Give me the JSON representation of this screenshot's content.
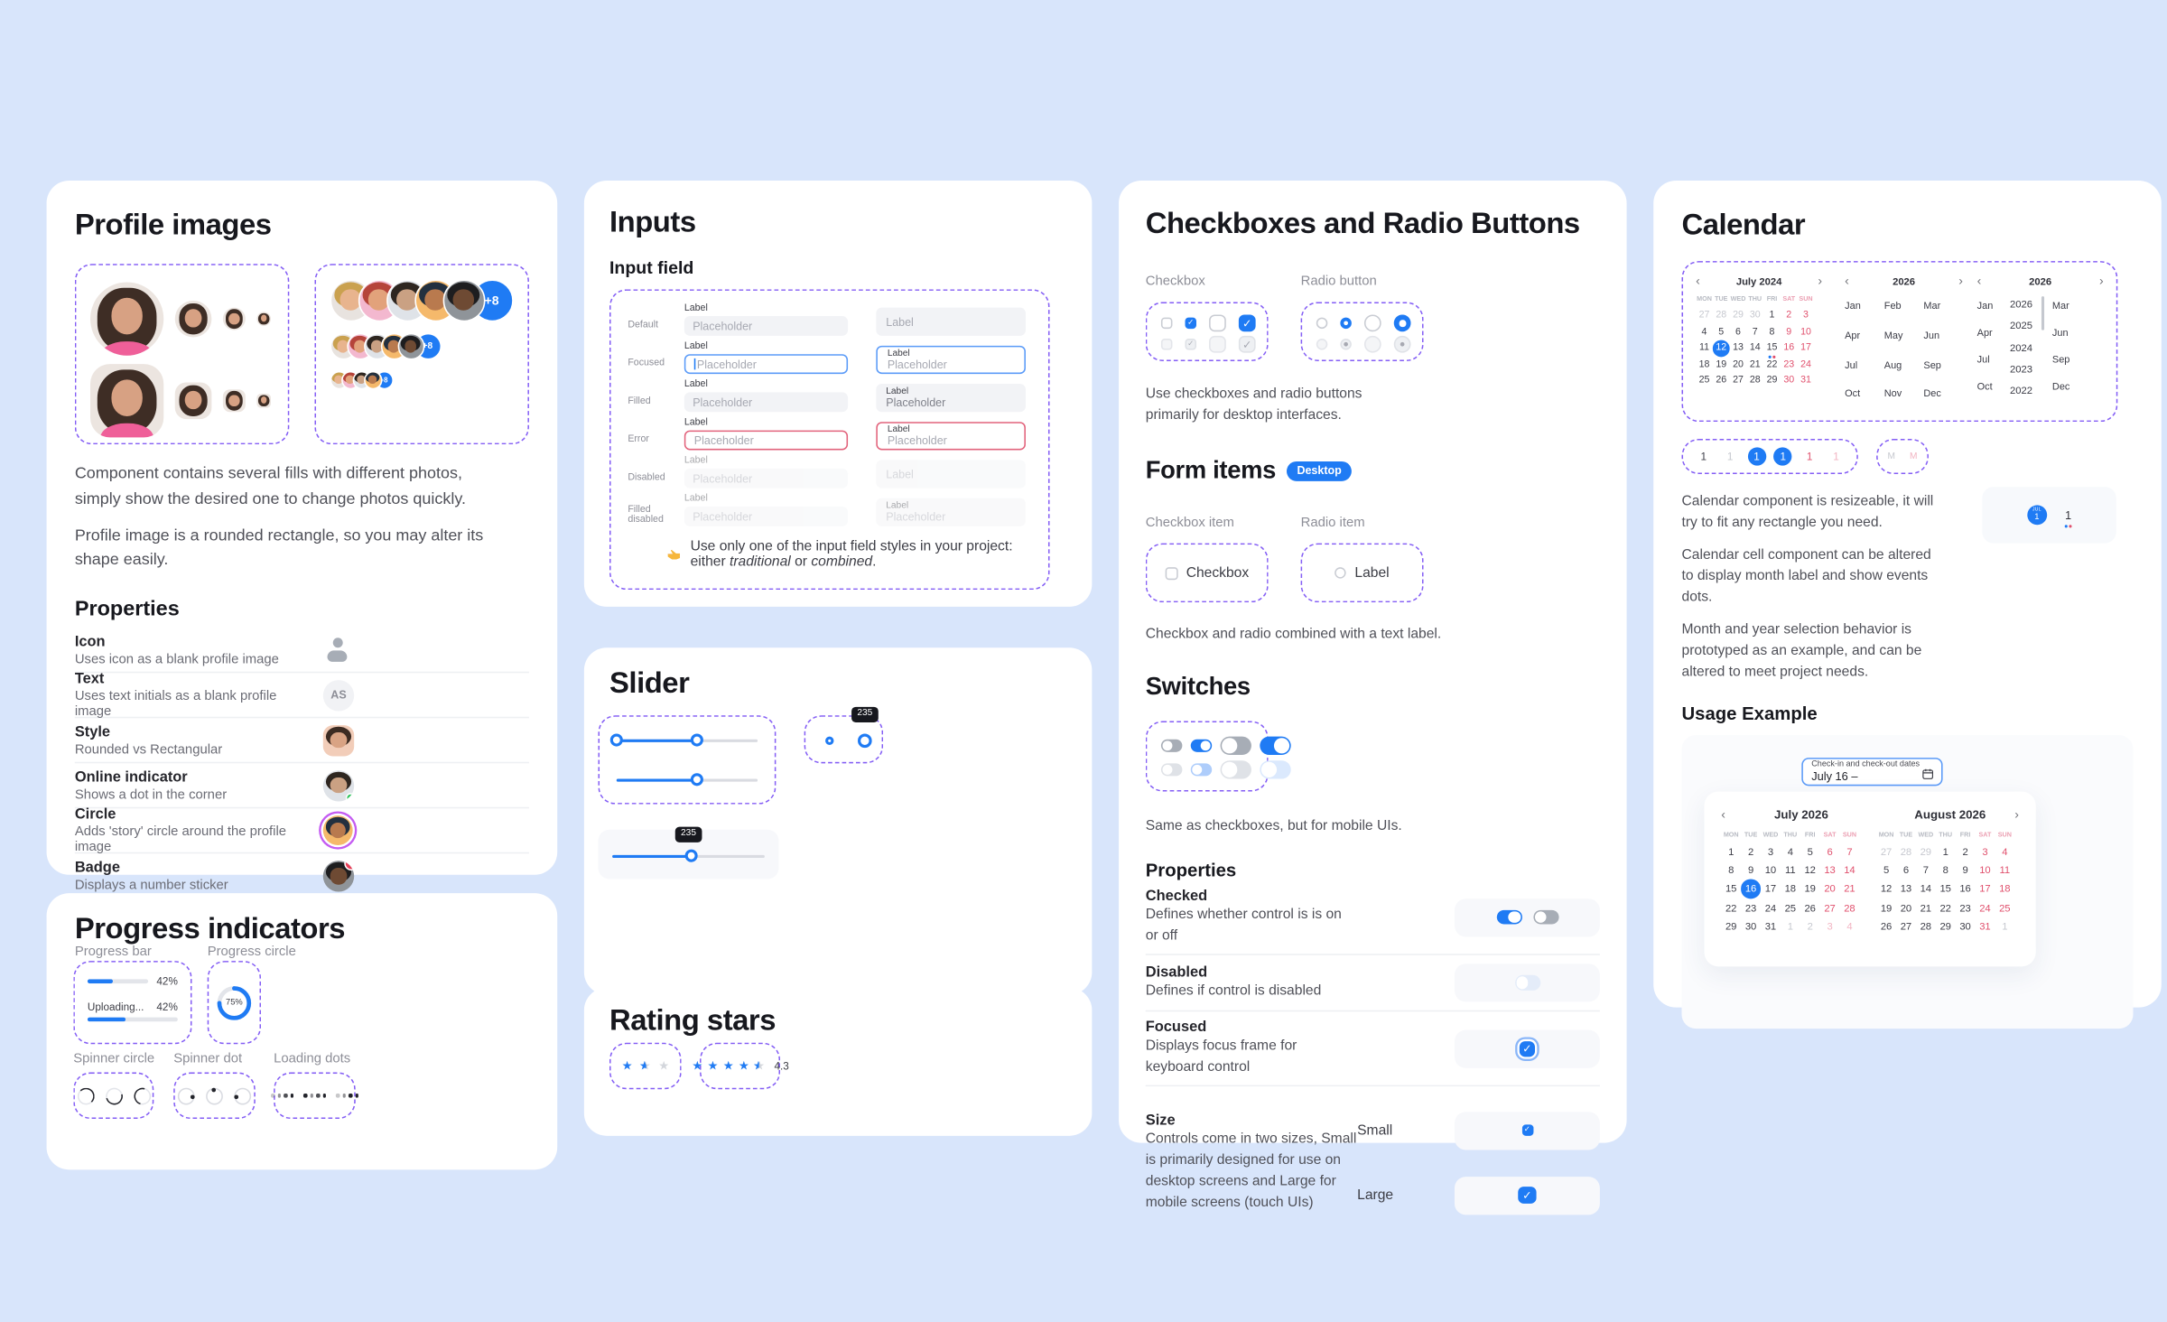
{
  "page": {
    "background": "#d8e5fb",
    "accent": "#1f7bf4",
    "frame_purple": "#845ef5",
    "weekend_red": "#e0506d"
  },
  "icons": {
    "pointing_hand": "👉",
    "calendar": "🗓",
    "chevron_left": "‹",
    "chevron_right": "›",
    "check": "✓",
    "star": "★"
  },
  "profile": {
    "title": "Profile images",
    "facepile_more": "+8",
    "desc1": "Component contains several fills with different photos, simply show the desired one to change photos quickly.",
    "desc2": "Profile image is a rounded rectangle, so you may alter its shape easily.",
    "properties_title": "Properties",
    "props": [
      {
        "name": "Icon",
        "desc": "Uses icon as a blank profile image"
      },
      {
        "name": "Text",
        "desc": "Uses text initials as a blank profile image",
        "initials": "AS"
      },
      {
        "name": "Style",
        "desc": "Rounded vs Rectangular"
      },
      {
        "name": "Online indicator",
        "desc": "Shows a dot in the corner"
      },
      {
        "name": "Circle",
        "desc": "Adds 'story' circle around the profile image"
      },
      {
        "name": "Badge",
        "desc": "Displays a number sticker",
        "badge": "4"
      }
    ]
  },
  "progress": {
    "title": "Progress indicators",
    "bar_label": "Progress bar",
    "circle_label": "Progress circle",
    "bar1_value": "42%",
    "bar2_label": "Uploading...",
    "bar2_value": "42%",
    "circle_value": "75%",
    "spinner_circle_label": "Spinner circle",
    "spinner_dot_label": "Spinner dot",
    "loading_dots_label": "Loading dots"
  },
  "inputs": {
    "title": "Inputs",
    "subtitle": "Input field",
    "label": "Label",
    "placeholder": "Placeholder",
    "states": [
      "Default",
      "Focused",
      "Filled",
      "Error",
      "Disabled",
      "Filled disabled"
    ],
    "note": {
      "p1": "Use only one of the input field styles in your project: either ",
      "i1": "traditional",
      "p2": " or ",
      "i2": "combined",
      "p3": "."
    }
  },
  "slider": {
    "title": "Slider",
    "tooltip1": "235",
    "tooltip2": "235"
  },
  "rating": {
    "title": "Rating stars",
    "value": "4.3",
    "box1_stars": [
      "full",
      "half",
      "empty"
    ],
    "box2_stars": [
      "full",
      "full",
      "full",
      "full",
      "half"
    ]
  },
  "checkboxes": {
    "title": "Checkboxes and Radio Buttons",
    "checkbox_label": "Checkbox",
    "radio_label": "Radio button",
    "desc": "Use checkboxes and radio buttons primarily for desktop interfaces.",
    "form_items_title": "Form items",
    "form_items_badge": "Desktop",
    "checkbox_item_label": "Checkbox item",
    "radio_item_label": "Radio item",
    "checkbox_item_text": "Checkbox",
    "radio_item_text": "Label",
    "combined_desc": "Checkbox and radio combined with a text label.",
    "switches_title": "Switches",
    "switches_desc": "Same as checkboxes, but for mobile UIs.",
    "properties_title": "Properties",
    "props": [
      {
        "name": "Checked",
        "desc": "Defines whether control is is on or off"
      },
      {
        "name": "Disabled",
        "desc": "Defines if control is disabled"
      },
      {
        "name": "Focused",
        "desc": "Displays focus frame for keyboard control"
      },
      {
        "name": "Size",
        "desc": "Controls come in two sizes, Small is primarily designed for use on desktop screens and Large for mobile screens (touch UIs)",
        "small": "Small",
        "large": "Large"
      }
    ]
  },
  "calendar": {
    "title": "Calendar",
    "chevron_left": "‹",
    "chevron_right": "›",
    "day_headers": [
      "MON",
      "TUE",
      "WED",
      "THU",
      "FRI",
      "SAT",
      "SUN"
    ],
    "month_view": {
      "title": "July 2024",
      "days": [
        {
          "d": "27",
          "c": "mut"
        },
        {
          "d": "28",
          "c": "mut"
        },
        {
          "d": "29",
          "c": "mut"
        },
        {
          "d": "30",
          "c": "mut"
        },
        {
          "d": "1"
        },
        {
          "d": "2",
          "c": "wk"
        },
        {
          "d": "3",
          "c": "wk"
        },
        {
          "d": "4"
        },
        {
          "d": "5"
        },
        {
          "d": "6"
        },
        {
          "d": "7"
        },
        {
          "d": "8"
        },
        {
          "d": "9",
          "c": "wk"
        },
        {
          "d": "10",
          "c": "wk"
        },
        {
          "d": "11"
        },
        {
          "d": "12",
          "c": "sel"
        },
        {
          "d": "13"
        },
        {
          "d": "14"
        },
        {
          "d": "15",
          "c": "dots"
        },
        {
          "d": "16",
          "c": "wk"
        },
        {
          "d": "17",
          "c": "wk"
        },
        {
          "d": "18"
        },
        {
          "d": "19"
        },
        {
          "d": "20"
        },
        {
          "d": "21"
        },
        {
          "d": "22"
        },
        {
          "d": "23",
          "c": "wk"
        },
        {
          "d": "24",
          "c": "wk"
        },
        {
          "d": "25"
        },
        {
          "d": "26"
        },
        {
          "d": "27"
        },
        {
          "d": "28"
        },
        {
          "d": "29"
        },
        {
          "d": "30",
          "c": "wk"
        },
        {
          "d": "31",
          "c": "wk"
        }
      ]
    },
    "year_view": {
      "title": "2026",
      "months": [
        "Jan",
        "Feb",
        "Mar",
        "Apr",
        "May",
        "Jun",
        "Jul",
        "Aug",
        "Sep",
        "Oct",
        "Nov",
        "Dec"
      ]
    },
    "year_scroll_view": {
      "title": "2026",
      "left_months": [
        "Jan",
        "Apr",
        "Jul",
        "Oct"
      ],
      "years": [
        "2026",
        "2025",
        "2024",
        "2023",
        "2022"
      ],
      "right_months": [
        "Mar",
        "Jun",
        "Sep",
        "Dec"
      ]
    },
    "cell_variants": [
      {
        "d": "1"
      },
      {
        "d": "1",
        "c": "mut"
      },
      {
        "d": "1",
        "c": "sel"
      },
      {
        "d": "1",
        "c": "sel"
      },
      {
        "d": "1",
        "c": "wk"
      },
      {
        "d": "1",
        "c": "wkmut"
      }
    ],
    "month_cell_variants": [
      {
        "d": "M",
        "c": "mut"
      },
      {
        "d": "M",
        "c": "wkmut"
      }
    ],
    "para1": "Calendar component is resizeable, it will try to fit any rectangle you need.",
    "para2": "Calendar cell component can be altered to display month label and show events dots.",
    "para3": "Month and year selection behavior is prototyped as an example, and can be altered to meet project needs.",
    "demo": {
      "month": "JUL",
      "day": "1",
      "event_day": "1"
    },
    "usage_title": "Usage Example",
    "checkin": {
      "label": "Check-in and check-out dates",
      "value": "July 16 –"
    },
    "usage_left": {
      "title": "July 2026",
      "days": [
        {
          "d": "1"
        },
        {
          "d": "2"
        },
        {
          "d": "3"
        },
        {
          "d": "4"
        },
        {
          "d": "5"
        },
        {
          "d": "6",
          "c": "wk"
        },
        {
          "d": "7",
          "c": "wk"
        },
        {
          "d": "8"
        },
        {
          "d": "9"
        },
        {
          "d": "10"
        },
        {
          "d": "11"
        },
        {
          "d": "12"
        },
        {
          "d": "13",
          "c": "wk"
        },
        {
          "d": "14",
          "c": "wk"
        },
        {
          "d": "15"
        },
        {
          "d": "16",
          "c": "sel"
        },
        {
          "d": "17"
        },
        {
          "d": "18"
        },
        {
          "d": "19"
        },
        {
          "d": "20",
          "c": "wk"
        },
        {
          "d": "21",
          "c": "wk"
        },
        {
          "d": "22"
        },
        {
          "d": "23"
        },
        {
          "d": "24"
        },
        {
          "d": "25"
        },
        {
          "d": "26"
        },
        {
          "d": "27",
          "c": "wk"
        },
        {
          "d": "28",
          "c": "wk"
        },
        {
          "d": "29"
        },
        {
          "d": "30"
        },
        {
          "d": "31"
        },
        {
          "d": "1",
          "c": "mut"
        },
        {
          "d": "2",
          "c": "mut"
        },
        {
          "d": "3",
          "c": "wkmut"
        },
        {
          "d": "4",
          "c": "wkmut"
        }
      ]
    },
    "usage_right": {
      "title": "August 2026",
      "days": [
        {
          "d": "27",
          "c": "mut"
        },
        {
          "d": "28",
          "c": "mut"
        },
        {
          "d": "29",
          "c": "mut"
        },
        {
          "d": "1"
        },
        {
          "d": "2"
        },
        {
          "d": "3",
          "c": "wk"
        },
        {
          "d": "4",
          "c": "wk"
        },
        {
          "d": "5"
        },
        {
          "d": "6"
        },
        {
          "d": "7"
        },
        {
          "d": "8"
        },
        {
          "d": "9"
        },
        {
          "d": "10",
          "c": "wk"
        },
        {
          "d": "11",
          "c": "wk"
        },
        {
          "d": "12"
        },
        {
          "d": "13"
        },
        {
          "d": "14"
        },
        {
          "d": "15"
        },
        {
          "d": "16"
        },
        {
          "d": "17",
          "c": "wk"
        },
        {
          "d": "18",
          "c": "wk"
        },
        {
          "d": "19"
        },
        {
          "d": "20"
        },
        {
          "d": "21"
        },
        {
          "d": "22"
        },
        {
          "d": "23"
        },
        {
          "d": "24",
          "c": "wk"
        },
        {
          "d": "25",
          "c": "wk"
        },
        {
          "d": "26"
        },
        {
          "d": "27"
        },
        {
          "d": "28"
        },
        {
          "d": "29"
        },
        {
          "d": "30"
        },
        {
          "d": "31",
          "c": "wk"
        },
        {
          "d": "1",
          "c": "mut"
        }
      ]
    }
  }
}
